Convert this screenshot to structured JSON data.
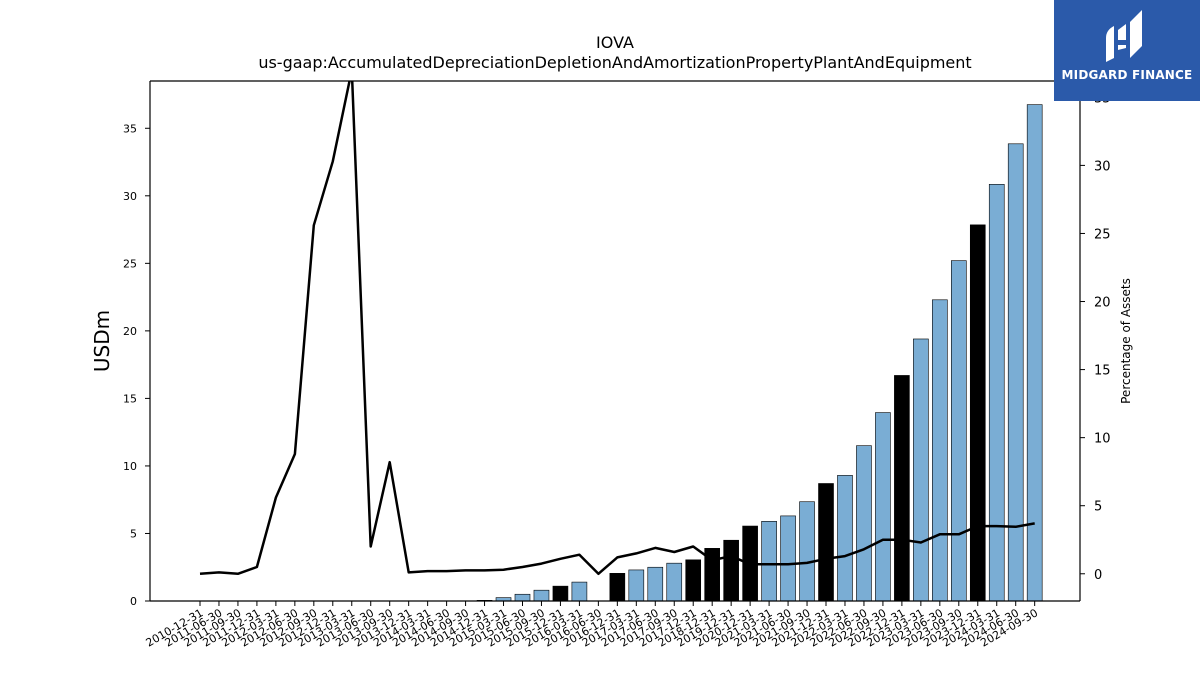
{
  "chart_data": {
    "type": "bar",
    "title": "IOVA",
    "subtitle": "us-gaap:AccumulatedDepreciationDepletionAndAmortizationPropertyPlantAndEquipment",
    "ylabel": "USDm",
    "ylabel_right": "Percentage of Assets",
    "ylim": [
      0,
      38.5
    ],
    "ylim_right": [
      -2,
      36.2
    ],
    "yticks": [
      0,
      5,
      10,
      15,
      20,
      25,
      30,
      35
    ],
    "yticks_right": [
      0,
      5,
      10,
      15,
      20,
      25,
      30,
      35
    ],
    "grid": false,
    "categories": [
      "2010-12-31",
      "2011-06-30",
      "2011-09-30",
      "2011-12-31",
      "2012-03-31",
      "2012-06-30",
      "2012-09-30",
      "2012-12-31",
      "2013-03-31",
      "2013-06-30",
      "2013-09-30",
      "2013-12-31",
      "2014-03-31",
      "2014-06-30",
      "2014-09-30",
      "2014-12-31",
      "2015-03-31",
      "2015-06-30",
      "2015-09-30",
      "2015-12-31",
      "2016-03-31",
      "2016-06-30",
      "2016-12-31",
      "2017-03-31",
      "2017-06-30",
      "2017-09-30",
      "2017-12-31",
      "2018-12-31",
      "2019-12-31",
      "2020-12-31",
      "2021-03-31",
      "2021-06-30",
      "2021-09-30",
      "2021-12-31",
      "2022-03-31",
      "2022-06-30",
      "2022-09-30",
      "2022-12-31",
      "2023-03-31",
      "2023-06-30",
      "2023-09-30",
      "2023-12-31",
      "2024-03-31",
      "2024-06-30",
      "2024-09-30"
    ],
    "series": [
      {
        "values": [
          0,
          0,
          0,
          0,
          0,
          0,
          0,
          0,
          0,
          0,
          0,
          0,
          0,
          0,
          0,
          0.05,
          0.25,
          0.5,
          0.8,
          1.1,
          1.4,
          null,
          2.05,
          2.3,
          2.5,
          2.8,
          3.05,
          3.9,
          4.5,
          5.55,
          5.9,
          6.3,
          7.35,
          8.7,
          9.3,
          11.5,
          13.95,
          16.7,
          19.4,
          22.3,
          25.2,
          27.85,
          30.85,
          33.85,
          36.75
        ],
        "annual": [
          false,
          false,
          false,
          false,
          false,
          false,
          false,
          false,
          false,
          false,
          false,
          false,
          false,
          false,
          false,
          false,
          false,
          false,
          false,
          true,
          false,
          false,
          true,
          false,
          false,
          false,
          true,
          true,
          true,
          true,
          false,
          false,
          false,
          true,
          false,
          false,
          false,
          true,
          false,
          false,
          false,
          true,
          false,
          false,
          false
        ]
      },
      {
        "values": [
          0.0,
          0.1,
          0.0,
          0.5,
          5.6,
          8.8,
          25.6,
          30.3,
          37.0,
          2.0,
          8.2,
          0.1,
          0.2,
          0.2,
          0.25,
          0.25,
          0.3,
          0.5,
          0.75,
          1.1,
          1.4,
          0.0,
          1.2,
          1.5,
          1.9,
          1.6,
          2.0,
          1.0,
          1.3,
          0.7,
          0.7,
          0.7,
          0.8,
          1.1,
          1.3,
          1.8,
          2.5,
          2.5,
          2.3,
          2.9,
          2.9,
          3.5,
          3.5,
          3.45,
          3.7
        ]
      }
    ],
    "colors": {
      "bar": "#7aadd4",
      "bar_annual": "#000000",
      "line": "#000000"
    }
  },
  "logo": {
    "text": "MIDGARD FINANCE"
  }
}
